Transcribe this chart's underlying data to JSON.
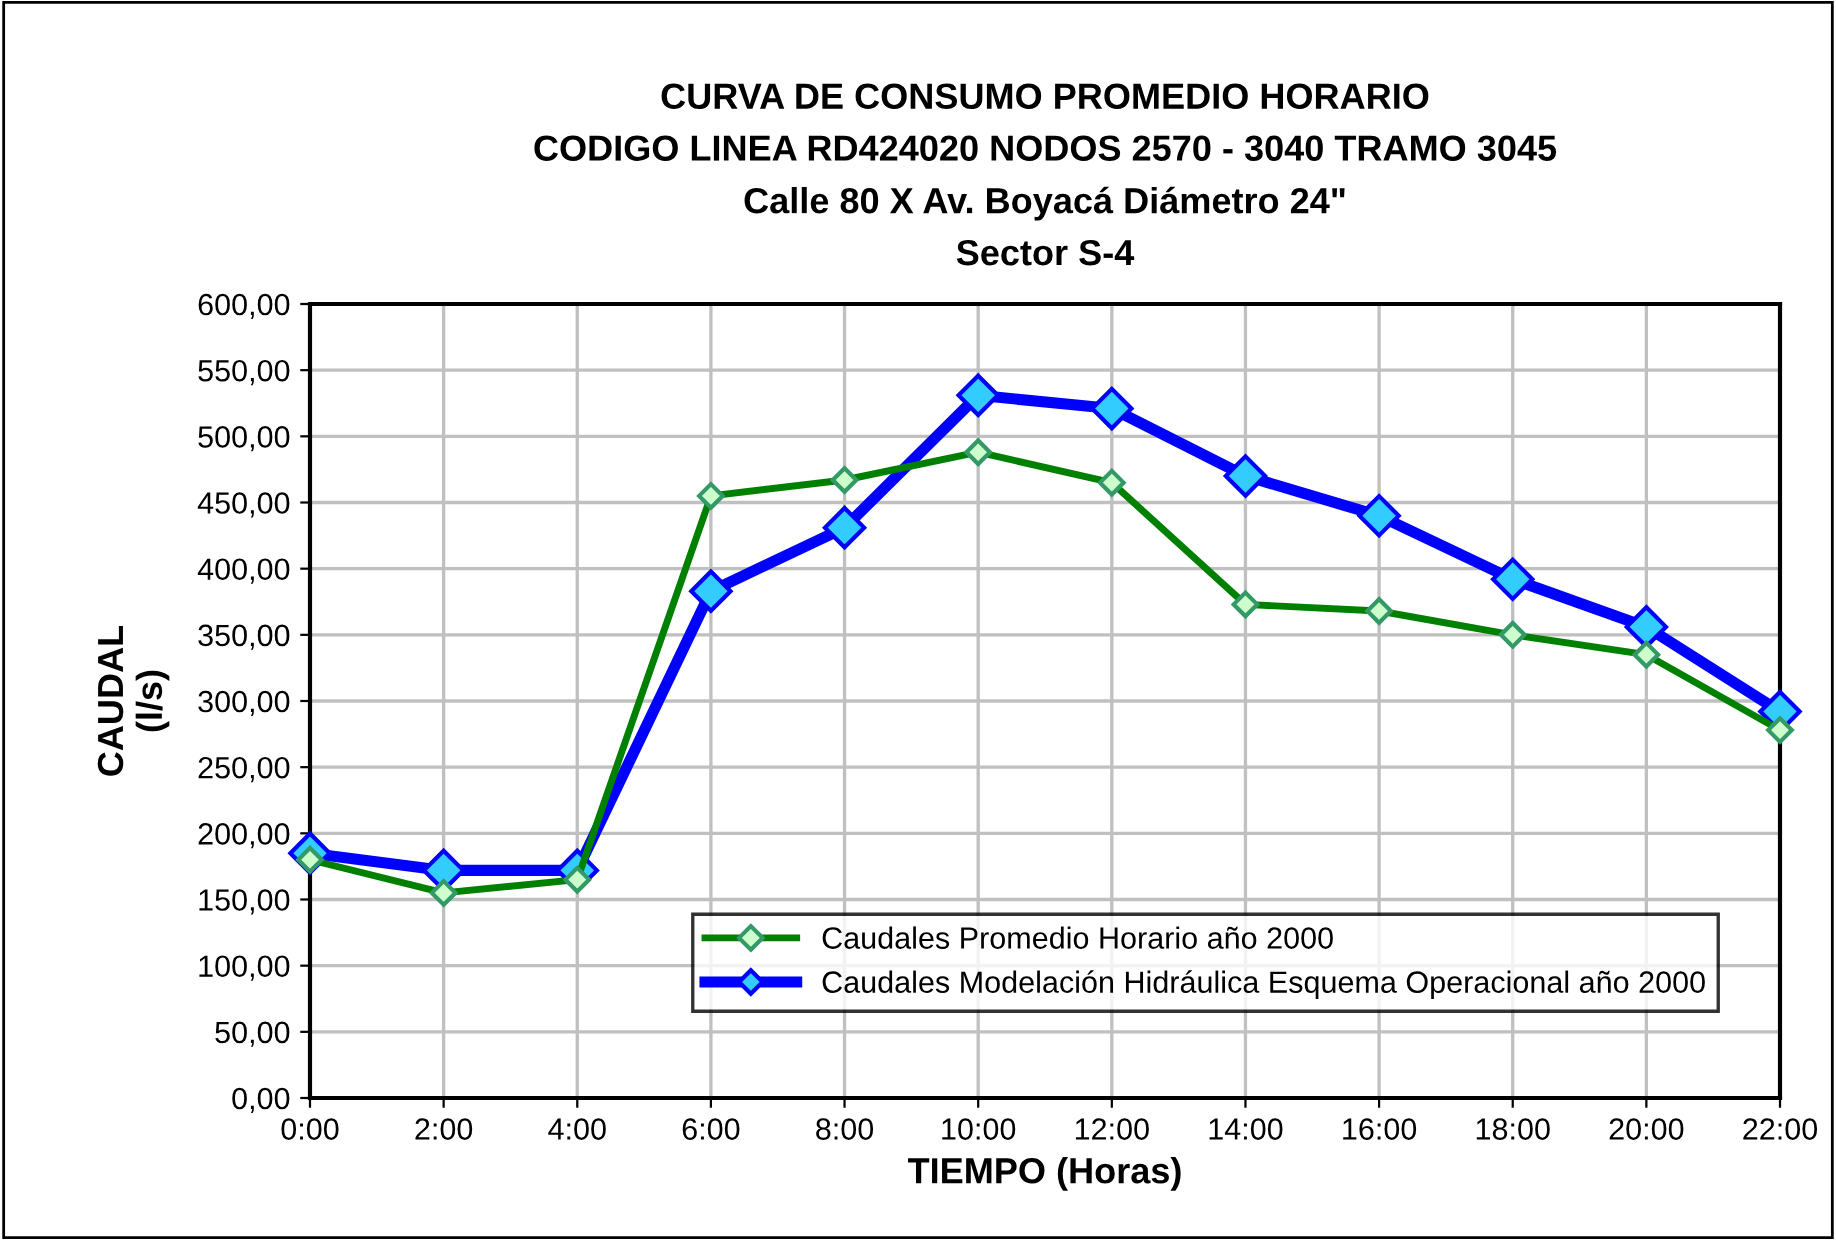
{
  "chart_data": {
    "type": "line",
    "title": "CURVA DE CONSUMO PROMEDIO HORARIO\nCODIGO LINEA RD424020 NODOS 2570 - 3040 TRAMO 3045\nCalle 80 X Av. Boyacá Diámetro 24\"\nSector S-4",
    "xlabel": "TIEMPO (Horas)",
    "ylabel": "CAUDAL\n(l/s)",
    "x": [
      0,
      2,
      4,
      6,
      8,
      10,
      12,
      14,
      16,
      18,
      20,
      22
    ],
    "series": [
      {
        "name": "Caudales Promedio Horario año 2000",
        "color": "#008000",
        "values": [
          180,
          155,
          165,
          455,
          467,
          488,
          465,
          373,
          368,
          350,
          335,
          278
        ]
      },
      {
        "name": "Caudales Modelación Hidráulica Esquema Operacional año 2000",
        "color": "#0000ff",
        "values": [
          185,
          172,
          172,
          383,
          431,
          531,
          521,
          470,
          440,
          392,
          356,
          292
        ]
      }
    ],
    "xlim": [
      0,
      22
    ],
    "xticks": [
      {
        "value": 0,
        "label": "0:00"
      },
      {
        "value": 2,
        "label": "2:00"
      },
      {
        "value": 4,
        "label": "4:00"
      },
      {
        "value": 6,
        "label": "6:00"
      },
      {
        "value": 8,
        "label": "8:00"
      },
      {
        "value": 10,
        "label": "10:00"
      },
      {
        "value": 12,
        "label": "12:00"
      },
      {
        "value": 14,
        "label": "14:00"
      },
      {
        "value": 16,
        "label": "16:00"
      },
      {
        "value": 18,
        "label": "18:00"
      },
      {
        "value": 20,
        "label": "20:00"
      },
      {
        "value": 22,
        "label": "22:00"
      }
    ],
    "ylim": [
      0,
      600
    ],
    "yticks": [
      {
        "value": 0,
        "label": "0,00"
      },
      {
        "value": 50,
        "label": "50,00"
      },
      {
        "value": 100,
        "label": "100,00"
      },
      {
        "value": 150,
        "label": "150,00"
      },
      {
        "value": 200,
        "label": "200,00"
      },
      {
        "value": 250,
        "label": "250,00"
      },
      {
        "value": 300,
        "label": "300,00"
      },
      {
        "value": 350,
        "label": "350,00"
      },
      {
        "value": 400,
        "label": "400,00"
      },
      {
        "value": 450,
        "label": "450,00"
      },
      {
        "value": 500,
        "label": "500,00"
      },
      {
        "value": 550,
        "label": "550,00"
      },
      {
        "value": 600,
        "label": "600,00"
      }
    ],
    "grid": true,
    "legend": "bottom right",
    "marker": "diamond",
    "line_style": "solid"
  }
}
